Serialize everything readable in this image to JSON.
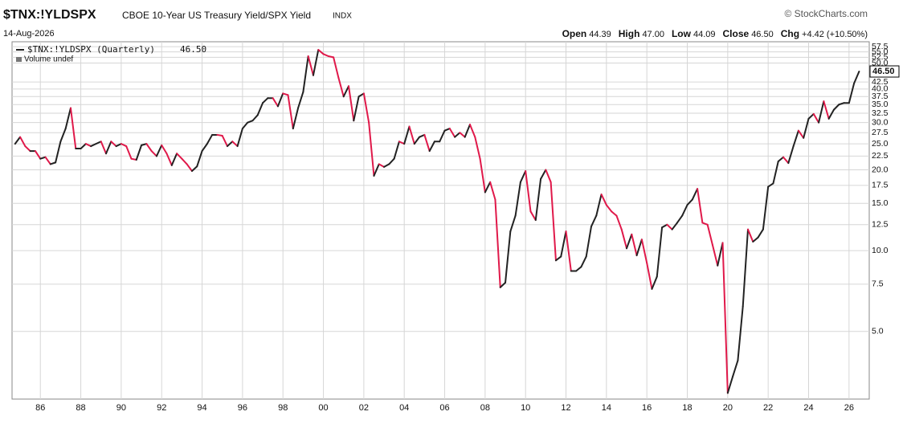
{
  "chart_data": {
    "type": "line",
    "title": "$TNX:!YLDSPX",
    "subtitle": "CBOE 10-Year US Treasury Yield/SPX Yield",
    "exchange": "INDX",
    "date": "14-Aug-2026",
    "source": "© StockCharts.com",
    "quote": [
      {
        "label": "Open",
        "value": "44.39"
      },
      {
        "label": "High",
        "value": "47.00"
      },
      {
        "label": "Low",
        "value": "44.09"
      },
      {
        "label": "Close",
        "value": "46.50"
      },
      {
        "label": "Chg",
        "value": "+4.42 (+10.50%)"
      }
    ],
    "volume_note": "Volume undef",
    "log_scale": true,
    "grid": true,
    "up_color": "#222222",
    "down_color": "#e0194a",
    "x": [
      1984.75,
      1985,
      1985.25,
      1985.5,
      1985.75,
      1986,
      1986.25,
      1986.5,
      1986.75,
      1987,
      1987.25,
      1987.5,
      1987.75,
      1988,
      1988.25,
      1988.5,
      1988.75,
      1989,
      1989.25,
      1989.5,
      1989.75,
      1990,
      1990.25,
      1990.5,
      1990.75,
      1991,
      1991.25,
      1991.5,
      1991.75,
      1992,
      1992.25,
      1992.5,
      1992.75,
      1993,
      1993.25,
      1993.5,
      1993.75,
      1994,
      1994.25,
      1994.5,
      1994.75,
      1995,
      1995.25,
      1995.5,
      1995.75,
      1996,
      1996.25,
      1996.5,
      1996.75,
      1997,
      1997.25,
      1997.5,
      1997.75,
      1998,
      1998.25,
      1998.5,
      1998.75,
      1999,
      1999.25,
      1999.5,
      1999.75,
      2000,
      2000.25,
      2000.5,
      2000.75,
      2001,
      2001.25,
      2001.5,
      2001.75,
      2002,
      2002.25,
      2002.5,
      2002.75,
      2003,
      2003.25,
      2003.5,
      2003.75,
      2004,
      2004.25,
      2004.5,
      2004.75,
      2005,
      2005.25,
      2005.5,
      2005.75,
      2006,
      2006.25,
      2006.5,
      2006.75,
      2007,
      2007.25,
      2007.5,
      2007.75,
      2008,
      2008.25,
      2008.5,
      2008.75,
      2009,
      2009.25,
      2009.5,
      2009.75,
      2010,
      2010.25,
      2010.5,
      2010.75,
      2011,
      2011.25,
      2011.5,
      2011.75,
      2012,
      2012.25,
      2012.5,
      2012.75,
      2013,
      2013.25,
      2013.5,
      2013.75,
      2014,
      2014.25,
      2014.5,
      2014.75,
      2015,
      2015.25,
      2015.5,
      2015.75,
      2016,
      2016.25,
      2016.5,
      2016.75,
      2017,
      2017.25,
      2017.5,
      2017.75,
      2018,
      2018.25,
      2018.5,
      2018.75,
      2019,
      2019.25,
      2019.5,
      2019.75,
      2020,
      2020.25,
      2020.5,
      2020.75,
      2021,
      2021.25,
      2021.5,
      2021.75,
      2022,
      2022.25,
      2022.5,
      2022.75,
      2023,
      2023.25,
      2023.5,
      2023.75,
      2024,
      2024.25,
      2024.5,
      2024.75,
      2025,
      2025.25,
      2025.5,
      2025.75,
      2026,
      2026.25,
      2026.5
    ],
    "series": [
      {
        "name": "$TNX:!YLDSPX (Quarterly)",
        "last_value_label": "46.50",
        "values": [
          25,
          26.5,
          24.5,
          23.5,
          23.5,
          22,
          22.3,
          21,
          21.3,
          25.5,
          28.5,
          34,
          24,
          24,
          25,
          24.5,
          25,
          25.5,
          23,
          25.5,
          24.5,
          25,
          24.5,
          22,
          21.8,
          24.7,
          25,
          23.5,
          22.5,
          24.7,
          23,
          20.8,
          23,
          22,
          21,
          19.8,
          20.6,
          23.5,
          25,
          27,
          27,
          26.8,
          24.5,
          25.5,
          24.5,
          28.5,
          30,
          30.5,
          32,
          35.5,
          37,
          37,
          34.5,
          38.5,
          38,
          28.5,
          34,
          39,
          53,
          45,
          56,
          54,
          53,
          52.5,
          44,
          37.5,
          41,
          30.5,
          37.5,
          38.5,
          30,
          19,
          21,
          20.5,
          21,
          22,
          25.5,
          25,
          29,
          25,
          26.5,
          27,
          23.5,
          25.5,
          25.5,
          28,
          28.5,
          26.5,
          27.5,
          26.5,
          29.5,
          26.5,
          22,
          16.5,
          18,
          15.5,
          7.3,
          7.6,
          11.8,
          13.5,
          18,
          19.8,
          14,
          13,
          18.5,
          20,
          18,
          9.2,
          9.5,
          11.8,
          8.4,
          8.4,
          8.7,
          9.5,
          12.3,
          13.5,
          16.2,
          14.8,
          14,
          13.5,
          12,
          10.2,
          11.5,
          9.6,
          11,
          9,
          7.2,
          8,
          12.2,
          12.5,
          12,
          12.7,
          13.5,
          14.8,
          15.5,
          17,
          12.7,
          12.5,
          10.5,
          8.8,
          10.7,
          2.95,
          3.4,
          3.9,
          6.2,
          12,
          10.8,
          11.2,
          12,
          17.3,
          17.8,
          21.5,
          22.3,
          21.2,
          24.5,
          28,
          26.3,
          31,
          32.3,
          30,
          36,
          31,
          33.5,
          35,
          35.5,
          35.5,
          42,
          46.5
        ]
      }
    ],
    "xlim": [
      1984.6,
      2027
    ],
    "xticks": [
      {
        "value": 1986,
        "label": "86"
      },
      {
        "value": 1988,
        "label": "88"
      },
      {
        "value": 1990,
        "label": "90"
      },
      {
        "value": 1992,
        "label": "92"
      },
      {
        "value": 1994,
        "label": "94"
      },
      {
        "value": 1996,
        "label": "96"
      },
      {
        "value": 1998,
        "label": "98"
      },
      {
        "value": 2000,
        "label": "00"
      },
      {
        "value": 2002,
        "label": "02"
      },
      {
        "value": 2004,
        "label": "04"
      },
      {
        "value": 2006,
        "label": "06"
      },
      {
        "value": 2008,
        "label": "08"
      },
      {
        "value": 2010,
        "label": "10"
      },
      {
        "value": 2012,
        "label": "12"
      },
      {
        "value": 2014,
        "label": "14"
      },
      {
        "value": 2016,
        "label": "16"
      },
      {
        "value": 2018,
        "label": "18"
      },
      {
        "value": 2020,
        "label": "20"
      },
      {
        "value": 2022,
        "label": "22"
      },
      {
        "value": 2024,
        "label": "24"
      },
      {
        "value": 2026,
        "label": "26"
      }
    ],
    "ylim": [
      2.8,
      60
    ],
    "yticks": [
      {
        "value": 5,
        "label": "5.0"
      },
      7.5,
      {
        "value": 10,
        "label": "10.0"
      },
      12.5,
      {
        "value": 15,
        "label": "15.0"
      },
      17.5,
      {
        "value": 20,
        "label": "20.0"
      },
      22.5,
      {
        "value": 25,
        "label": "25.0"
      },
      27.5,
      {
        "value": 30,
        "label": "30.0"
      },
      32.5,
      {
        "value": 35,
        "label": "35.0"
      },
      37.5,
      {
        "value": 40,
        "label": "40.0"
      },
      42.5,
      {
        "value": 50,
        "label": "50.0"
      },
      52.5,
      {
        "value": 55,
        "label": "55.0"
      },
      57.5
    ]
  }
}
